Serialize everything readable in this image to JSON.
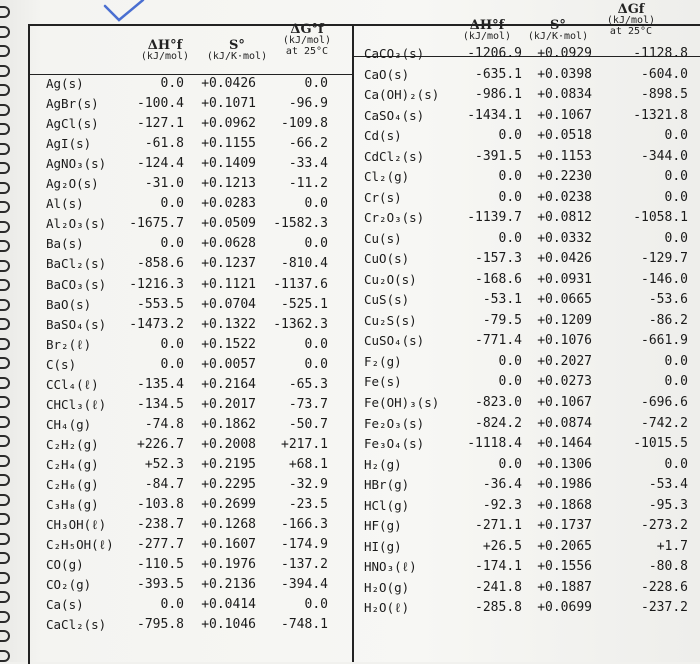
{
  "left_table": {
    "headers": {
      "dh": "ΔH°f",
      "dh_unit": "(kJ/mol)",
      "s": "S°",
      "s_unit": "(kJ/K·mol)",
      "dg": "ΔG°f",
      "dg_unit": "(kJ/mol)",
      "dg_note": "at 25°C"
    },
    "rows": [
      {
        "name": "Ag(s)",
        "dh": "0.0",
        "s": "+0.0426",
        "dg": "0.0"
      },
      {
        "name": "AgBr(s)",
        "dh": "-100.4",
        "s": "+0.1071",
        "dg": "-96.9"
      },
      {
        "name": "AgCl(s)",
        "dh": "-127.1",
        "s": "+0.0962",
        "dg": "-109.8"
      },
      {
        "name": "AgI(s)",
        "dh": "-61.8",
        "s": "+0.1155",
        "dg": "-66.2"
      },
      {
        "name": "AgNO₃(s)",
        "dh": "-124.4",
        "s": "+0.1409",
        "dg": "-33.4"
      },
      {
        "name": "Ag₂O(s)",
        "dh": "-31.0",
        "s": "+0.1213",
        "dg": "-11.2"
      },
      {
        "name": "Al(s)",
        "dh": "0.0",
        "s": "+0.0283",
        "dg": "0.0"
      },
      {
        "name": "Al₂O₃(s)",
        "dh": "-1675.7",
        "s": "+0.0509",
        "dg": "-1582.3"
      },
      {
        "name": "Ba(s)",
        "dh": "0.0",
        "s": "+0.0628",
        "dg": "0.0"
      },
      {
        "name": "BaCl₂(s)",
        "dh": "-858.6",
        "s": "+0.1237",
        "dg": "-810.4"
      },
      {
        "name": "BaCO₃(s)",
        "dh": "-1216.3",
        "s": "+0.1121",
        "dg": "-1137.6"
      },
      {
        "name": "BaO(s)",
        "dh": "-553.5",
        "s": "+0.0704",
        "dg": "-525.1"
      },
      {
        "name": "BaSO₄(s)",
        "dh": "-1473.2",
        "s": "+0.1322",
        "dg": "-1362.3"
      },
      {
        "name": "Br₂(ℓ)",
        "dh": "0.0",
        "s": "+0.1522",
        "dg": "0.0"
      },
      {
        "name": "C(s)",
        "dh": "0.0",
        "s": "+0.0057",
        "dg": "0.0"
      },
      {
        "name": "CCl₄(ℓ)",
        "dh": "-135.4",
        "s": "+0.2164",
        "dg": "-65.3"
      },
      {
        "name": "CHCl₃(ℓ)",
        "dh": "-134.5",
        "s": "+0.2017",
        "dg": "-73.7"
      },
      {
        "name": "CH₄(g)",
        "dh": "-74.8",
        "s": "+0.1862",
        "dg": "-50.7"
      },
      {
        "name": "C₂H₂(g)",
        "dh": "+226.7",
        "s": "+0.2008",
        "dg": "+217.1"
      },
      {
        "name": "C₂H₄(g)",
        "dh": "+52.3",
        "s": "+0.2195",
        "dg": "+68.1"
      },
      {
        "name": "C₂H₆(g)",
        "dh": "-84.7",
        "s": "+0.2295",
        "dg": "-32.9"
      },
      {
        "name": "C₃H₈(g)",
        "dh": "-103.8",
        "s": "+0.2699",
        "dg": "-23.5"
      },
      {
        "name": "CH₃OH(ℓ)",
        "dh": "-238.7",
        "s": "+0.1268",
        "dg": "-166.3"
      },
      {
        "name": "C₂H₅OH(ℓ)",
        "dh": "-277.7",
        "s": "+0.1607",
        "dg": "-174.9"
      },
      {
        "name": "CO(g)",
        "dh": "-110.5",
        "s": "+0.1976",
        "dg": "-137.2"
      },
      {
        "name": "CO₂(g)",
        "dh": "-393.5",
        "s": "+0.2136",
        "dg": "-394.4"
      },
      {
        "name": "Ca(s)",
        "dh": "0.0",
        "s": "+0.0414",
        "dg": "0.0"
      },
      {
        "name": "CaCl₂(s)",
        "dh": "-795.8",
        "s": "+0.1046",
        "dg": "-748.1"
      }
    ]
  },
  "right_table": {
    "headers": {
      "dh": "ΔH°f",
      "dh_unit": "(kJ/mol)",
      "s": "S°",
      "s_unit": "(kJ/K·mol)",
      "dg": "ΔGf",
      "dg_unit": "(kJ/mol)",
      "dg_note": "at 25°C"
    },
    "rows": [
      {
        "name": "CaCO₃(s)",
        "dh": "-1206.9",
        "s": "+0.0929",
        "dg": "-1128.8"
      },
      {
        "name": "CaO(s)",
        "dh": "-635.1",
        "s": "+0.0398",
        "dg": "-604.0"
      },
      {
        "name": "Ca(OH)₂(s)",
        "dh": "-986.1",
        "s": "+0.0834",
        "dg": "-898.5"
      },
      {
        "name": "CaSO₄(s)",
        "dh": "-1434.1",
        "s": "+0.1067",
        "dg": "-1321.8"
      },
      {
        "name": "Cd(s)",
        "dh": "0.0",
        "s": "+0.0518",
        "dg": "0.0"
      },
      {
        "name": "CdCl₂(s)",
        "dh": "-391.5",
        "s": "+0.1153",
        "dg": "-344.0"
      },
      {
        "name": "Cl₂(g)",
        "dh": "0.0",
        "s": "+0.2230",
        "dg": "0.0"
      },
      {
        "name": "Cr(s)",
        "dh": "0.0",
        "s": "+0.0238",
        "dg": "0.0"
      },
      {
        "name": "Cr₂O₃(s)",
        "dh": "-1139.7",
        "s": "+0.0812",
        "dg": "-1058.1"
      },
      {
        "name": "Cu(s)",
        "dh": "0.0",
        "s": "+0.0332",
        "dg": "0.0"
      },
      {
        "name": "CuO(s)",
        "dh": "-157.3",
        "s": "+0.0426",
        "dg": "-129.7"
      },
      {
        "name": "Cu₂O(s)",
        "dh": "-168.6",
        "s": "+0.0931",
        "dg": "-146.0"
      },
      {
        "name": "CuS(s)",
        "dh": "-53.1",
        "s": "+0.0665",
        "dg": "-53.6"
      },
      {
        "name": "Cu₂S(s)",
        "dh": "-79.5",
        "s": "+0.1209",
        "dg": "-86.2"
      },
      {
        "name": "CuSO₄(s)",
        "dh": "-771.4",
        "s": "+0.1076",
        "dg": "-661.9"
      },
      {
        "name": "F₂(g)",
        "dh": "0.0",
        "s": "+0.2027",
        "dg": "0.0"
      },
      {
        "name": "Fe(s)",
        "dh": "0.0",
        "s": "+0.0273",
        "dg": "0.0"
      },
      {
        "name": "Fe(OH)₃(s)",
        "dh": "-823.0",
        "s": "+0.1067",
        "dg": "-696.6"
      },
      {
        "name": "Fe₂O₃(s)",
        "dh": "-824.2",
        "s": "+0.0874",
        "dg": "-742.2"
      },
      {
        "name": "Fe₃O₄(s)",
        "dh": "-1118.4",
        "s": "+0.1464",
        "dg": "-1015.5"
      },
      {
        "name": "H₂(g)",
        "dh": "0.0",
        "s": "+0.1306",
        "dg": "0.0"
      },
      {
        "name": "HBr(g)",
        "dh": "-36.4",
        "s": "+0.1986",
        "dg": "-53.4"
      },
      {
        "name": "HCl(g)",
        "dh": "-92.3",
        "s": "+0.1868",
        "dg": "-95.3"
      },
      {
        "name": "HF(g)",
        "dh": "-271.1",
        "s": "+0.1737",
        "dg": "-273.2"
      },
      {
        "name": "HI(g)",
        "dh": "+26.5",
        "s": "+0.2065",
        "dg": "+1.7"
      },
      {
        "name": "HNO₃(ℓ)",
        "dh": "-174.1",
        "s": "+0.1556",
        "dg": "-80.8"
      },
      {
        "name": "H₂O(g)",
        "dh": "-241.8",
        "s": "+0.1887",
        "dg": "-228.6"
      },
      {
        "name": "H₂O(ℓ)",
        "dh": "-285.8",
        "s": "+0.0699",
        "dg": "-237.2"
      }
    ]
  }
}
